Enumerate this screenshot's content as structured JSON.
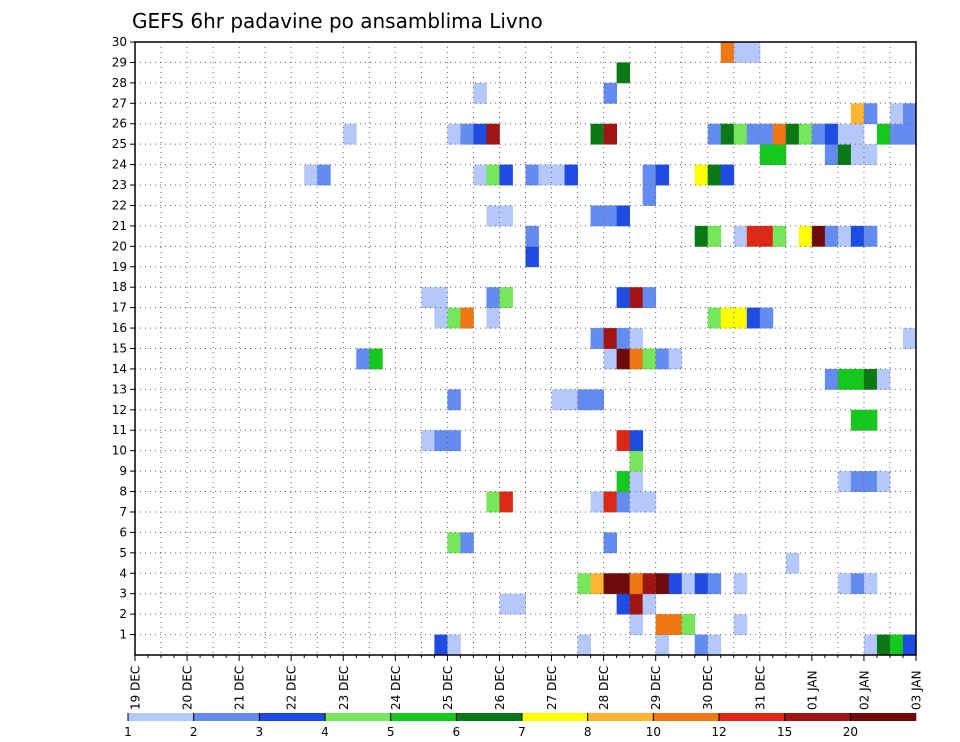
{
  "chart_data": {
    "type": "heatmap",
    "title": "GEFS 6hr padavine po ansamblima Livno",
    "xlabel": "",
    "ylabel": "",
    "y_ticks": [
      1,
      2,
      3,
      4,
      5,
      6,
      7,
      8,
      9,
      10,
      11,
      12,
      13,
      14,
      15,
      16,
      17,
      18,
      19,
      20,
      21,
      22,
      23,
      24,
      25,
      26,
      27,
      28,
      29,
      30
    ],
    "x_ticks": [
      "19 DEC",
      "20 DEC",
      "21 DEC",
      "22 DEC",
      "23 DEC",
      "24 DEC",
      "25 DEC",
      "26 DEC",
      "27 DEC",
      "28 DEC",
      "29 DEC",
      "30 DEC",
      "31 DEC",
      "01 JAN",
      "02 JAN",
      "03 JAN"
    ],
    "x_range_days": [
      0,
      15
    ],
    "y_range": [
      0,
      30
    ],
    "grid": true,
    "colorbar": {
      "placement": "bottom",
      "tick_labels": [
        "1",
        "2",
        "3",
        "4",
        "5",
        "6",
        "7",
        "8",
        "10",
        "12",
        "15",
        "20"
      ],
      "colors": [
        "#b4c8fa",
        "#648cf0",
        "#1e4be1",
        "#78e65a",
        "#14c81e",
        "#0a7814",
        "#ffff00",
        "#ffb432",
        "#f07814",
        "#dc2814",
        "#a01414",
        "#6e0a0a"
      ]
    },
    "cells": [
      {
        "m": 0,
        "d": 5.75,
        "v": 3
      },
      {
        "m": 0,
        "d": 6,
        "v": 1
      },
      {
        "m": 0,
        "d": 8.5,
        "v": 1
      },
      {
        "m": 0,
        "d": 10,
        "v": 1
      },
      {
        "m": 0,
        "d": 10.75,
        "v": 2
      },
      {
        "m": 0,
        "d": 11,
        "v": 1
      },
      {
        "m": 0,
        "d": 14,
        "v": 1
      },
      {
        "m": 0,
        "d": 14.25,
        "v": 6
      },
      {
        "m": 0,
        "d": 14.5,
        "v": 5
      },
      {
        "m": 0,
        "d": 14.75,
        "v": 3
      },
      {
        "m": 1,
        "d": 9.5,
        "v": 1
      },
      {
        "m": 1,
        "d": 10,
        "v": 10
      },
      {
        "m": 1,
        "d": 10.25,
        "v": 10
      },
      {
        "m": 1,
        "d": 10.5,
        "v": 4
      },
      {
        "m": 1,
        "d": 11.5,
        "v": 1
      },
      {
        "m": 2,
        "d": 7,
        "v": 1
      },
      {
        "m": 2,
        "d": 7.25,
        "v": 1
      },
      {
        "m": 2,
        "d": 9.25,
        "v": 3
      },
      {
        "m": 2,
        "d": 9.5,
        "v": 15
      },
      {
        "m": 2,
        "d": 9.75,
        "v": 1
      },
      {
        "m": 3,
        "d": 8.5,
        "v": 4
      },
      {
        "m": 3,
        "d": 8.75,
        "v": 8
      },
      {
        "m": 3,
        "d": 9,
        "v": 20
      },
      {
        "m": 3,
        "d": 9.25,
        "v": 20
      },
      {
        "m": 3,
        "d": 9.5,
        "v": 10
      },
      {
        "m": 3,
        "d": 9.75,
        "v": 15
      },
      {
        "m": 3,
        "d": 10,
        "v": 20
      },
      {
        "m": 3,
        "d": 10.25,
        "v": 3
      },
      {
        "m": 3,
        "d": 10.5,
        "v": 1
      },
      {
        "m": 3,
        "d": 10.75,
        "v": 3
      },
      {
        "m": 3,
        "d": 11,
        "v": 2
      },
      {
        "m": 3,
        "d": 11.5,
        "v": 1
      },
      {
        "m": 3,
        "d": 13.5,
        "v": 1
      },
      {
        "m": 3,
        "d": 13.75,
        "v": 2
      },
      {
        "m": 3,
        "d": 14,
        "v": 1
      },
      {
        "m": 4,
        "d": 12.5,
        "v": 1
      },
      {
        "m": 5,
        "d": 6,
        "v": 4
      },
      {
        "m": 5,
        "d": 6.25,
        "v": 2
      },
      {
        "m": 5,
        "d": 9,
        "v": 2
      },
      {
        "m": 7,
        "d": 6.75,
        "v": 4
      },
      {
        "m": 7,
        "d": 7,
        "v": 12
      },
      {
        "m": 7,
        "d": 8.75,
        "v": 1
      },
      {
        "m": 7,
        "d": 9,
        "v": 12
      },
      {
        "m": 7,
        "d": 9.25,
        "v": 2
      },
      {
        "m": 7,
        "d": 9.5,
        "v": 1
      },
      {
        "m": 7,
        "d": 9.75,
        "v": 1
      },
      {
        "m": 8,
        "d": 9.25,
        "v": 5
      },
      {
        "m": 8,
        "d": 9.5,
        "v": 1
      },
      {
        "m": 8,
        "d": 13.5,
        "v": 1
      },
      {
        "m": 8,
        "d": 13.75,
        "v": 2
      },
      {
        "m": 8,
        "d": 14,
        "v": 2
      },
      {
        "m": 8,
        "d": 14.25,
        "v": 1
      },
      {
        "m": 9,
        "d": 9.5,
        "v": 4
      },
      {
        "m": 10,
        "d": 5.5,
        "v": 1
      },
      {
        "m": 10,
        "d": 5.75,
        "v": 2
      },
      {
        "m": 10,
        "d": 6,
        "v": 2
      },
      {
        "m": 10,
        "d": 9.25,
        "v": 12
      },
      {
        "m": 10,
        "d": 9.5,
        "v": 3
      },
      {
        "m": 11,
        "d": 13.75,
        "v": 5
      },
      {
        "m": 11,
        "d": 14,
        "v": 5
      },
      {
        "m": 12,
        "d": 6,
        "v": 2
      },
      {
        "m": 12,
        "d": 8,
        "v": 1
      },
      {
        "m": 12,
        "d": 8.25,
        "v": 1
      },
      {
        "m": 12,
        "d": 8.5,
        "v": 2
      },
      {
        "m": 12,
        "d": 8.75,
        "v": 2
      },
      {
        "m": 13,
        "d": 13.25,
        "v": 2
      },
      {
        "m": 13,
        "d": 13.5,
        "v": 5
      },
      {
        "m": 13,
        "d": 13.75,
        "v": 5
      },
      {
        "m": 13,
        "d": 14,
        "v": 6
      },
      {
        "m": 13,
        "d": 14.25,
        "v": 1
      },
      {
        "m": 14,
        "d": 4.25,
        "v": 2
      },
      {
        "m": 14,
        "d": 4.5,
        "v": 5
      },
      {
        "m": 14,
        "d": 9,
        "v": 1
      },
      {
        "m": 14,
        "d": 9.25,
        "v": 20
      },
      {
        "m": 14,
        "d": 9.5,
        "v": 10
      },
      {
        "m": 14,
        "d": 9.75,
        "v": 4
      },
      {
        "m": 14,
        "d": 10,
        "v": 2
      },
      {
        "m": 14,
        "d": 10.25,
        "v": 1
      },
      {
        "m": 15,
        "d": 8.75,
        "v": 2
      },
      {
        "m": 15,
        "d": 9,
        "v": 15
      },
      {
        "m": 15,
        "d": 9.25,
        "v": 2
      },
      {
        "m": 15,
        "d": 9.5,
        "v": 1
      },
      {
        "m": 15,
        "d": 14.75,
        "v": 1
      },
      {
        "m": 16,
        "d": 5.75,
        "v": 1
      },
      {
        "m": 16,
        "d": 6,
        "v": 4
      },
      {
        "m": 16,
        "d": 6.25,
        "v": 10
      },
      {
        "m": 16,
        "d": 6.75,
        "v": 1
      },
      {
        "m": 16,
        "d": 11,
        "v": 4
      },
      {
        "m": 16,
        "d": 11.25,
        "v": 7
      },
      {
        "m": 16,
        "d": 11.5,
        "v": 7
      },
      {
        "m": 16,
        "d": 11.75,
        "v": 3
      },
      {
        "m": 16,
        "d": 12,
        "v": 2
      },
      {
        "m": 17,
        "d": 5.5,
        "v": 1
      },
      {
        "m": 17,
        "d": 5.75,
        "v": 1
      },
      {
        "m": 17,
        "d": 6.75,
        "v": 2
      },
      {
        "m": 17,
        "d": 7,
        "v": 4
      },
      {
        "m": 17,
        "d": 9.25,
        "v": 3
      },
      {
        "m": 17,
        "d": 9.5,
        "v": 15
      },
      {
        "m": 17,
        "d": 9.75,
        "v": 2
      },
      {
        "m": 19,
        "d": 7.5,
        "v": 3
      },
      {
        "m": 20,
        "d": 7.5,
        "v": 2
      },
      {
        "m": 20,
        "d": 10.75,
        "v": 6
      },
      {
        "m": 20,
        "d": 11,
        "v": 4
      },
      {
        "m": 20,
        "d": 11.5,
        "v": 1
      },
      {
        "m": 20,
        "d": 11.75,
        "v": 12
      },
      {
        "m": 20,
        "d": 12,
        "v": 12
      },
      {
        "m": 20,
        "d": 12.25,
        "v": 4
      },
      {
        "m": 20,
        "d": 12.75,
        "v": 7
      },
      {
        "m": 20,
        "d": 13,
        "v": 20
      },
      {
        "m": 20,
        "d": 13.25,
        "v": 2
      },
      {
        "m": 20,
        "d": 13.5,
        "v": 1
      },
      {
        "m": 20,
        "d": 13.75,
        "v": 3
      },
      {
        "m": 20,
        "d": 14,
        "v": 2
      },
      {
        "m": 21,
        "d": 6.75,
        "v": 1
      },
      {
        "m": 21,
        "d": 7,
        "v": 1
      },
      {
        "m": 21,
        "d": 8.75,
        "v": 2
      },
      {
        "m": 21,
        "d": 9,
        "v": 2
      },
      {
        "m": 21,
        "d": 9.25,
        "v": 3
      },
      {
        "m": 22,
        "d": 9.75,
        "v": 2
      },
      {
        "m": 23,
        "d": 3.25,
        "v": 1
      },
      {
        "m": 23,
        "d": 3.5,
        "v": 2
      },
      {
        "m": 23,
        "d": 6.5,
        "v": 1
      },
      {
        "m": 23,
        "d": 6.75,
        "v": 4
      },
      {
        "m": 23,
        "d": 7,
        "v": 3
      },
      {
        "m": 23,
        "d": 7.5,
        "v": 2
      },
      {
        "m": 23,
        "d": 7.75,
        "v": 1
      },
      {
        "m": 23,
        "d": 8,
        "v": 1
      },
      {
        "m": 23,
        "d": 8.25,
        "v": 3
      },
      {
        "m": 23,
        "d": 9.75,
        "v": 2
      },
      {
        "m": 23,
        "d": 10,
        "v": 3
      },
      {
        "m": 23,
        "d": 10.75,
        "v": 7
      },
      {
        "m": 23,
        "d": 11,
        "v": 6
      },
      {
        "m": 23,
        "d": 11.25,
        "v": 3
      },
      {
        "m": 24,
        "d": 12,
        "v": 5
      },
      {
        "m": 24,
        "d": 12.25,
        "v": 5
      },
      {
        "m": 24,
        "d": 13.25,
        "v": 2
      },
      {
        "m": 24,
        "d": 13.5,
        "v": 6
      },
      {
        "m": 24,
        "d": 13.75,
        "v": 1
      },
      {
        "m": 24,
        "d": 14,
        "v": 1
      },
      {
        "m": 25,
        "d": 4,
        "v": 1
      },
      {
        "m": 25,
        "d": 6,
        "v": 1
      },
      {
        "m": 25,
        "d": 6.25,
        "v": 2
      },
      {
        "m": 25,
        "d": 6.5,
        "v": 3
      },
      {
        "m": 25,
        "d": 6.75,
        "v": 15
      },
      {
        "m": 25,
        "d": 8.75,
        "v": 6
      },
      {
        "m": 25,
        "d": 9,
        "v": 15
      },
      {
        "m": 25,
        "d": 11,
        "v": 2
      },
      {
        "m": 25,
        "d": 11.25,
        "v": 6
      },
      {
        "m": 25,
        "d": 11.5,
        "v": 4
      },
      {
        "m": 25,
        "d": 11.75,
        "v": 2
      },
      {
        "m": 25,
        "d": 12,
        "v": 2
      },
      {
        "m": 25,
        "d": 12.25,
        "v": 10
      },
      {
        "m": 25,
        "d": 12.5,
        "v": 6
      },
      {
        "m": 25,
        "d": 12.75,
        "v": 4
      },
      {
        "m": 25,
        "d": 13,
        "v": 2
      },
      {
        "m": 25,
        "d": 13.25,
        "v": 3
      },
      {
        "m": 25,
        "d": 13.5,
        "v": 1
      },
      {
        "m": 25,
        "d": 13.75,
        "v": 1
      },
      {
        "m": 25,
        "d": 14.25,
        "v": 5
      },
      {
        "m": 25,
        "d": 14.5,
        "v": 2
      },
      {
        "m": 25,
        "d": 14.75,
        "v": 2
      },
      {
        "m": 26,
        "d": 13.75,
        "v": 8
      },
      {
        "m": 26,
        "d": 14,
        "v": 2
      },
      {
        "m": 26,
        "d": 14.5,
        "v": 1
      },
      {
        "m": 26,
        "d": 14.75,
        "v": 2
      },
      {
        "m": 27,
        "d": 6.5,
        "v": 1
      },
      {
        "m": 27,
        "d": 9,
        "v": 2
      },
      {
        "m": 28,
        "d": 9.25,
        "v": 6
      },
      {
        "m": 29,
        "d": 11.25,
        "v": 10
      },
      {
        "m": 29,
        "d": 11.5,
        "v": 1
      },
      {
        "m": 29,
        "d": 11.75,
        "v": 1
      }
    ]
  }
}
